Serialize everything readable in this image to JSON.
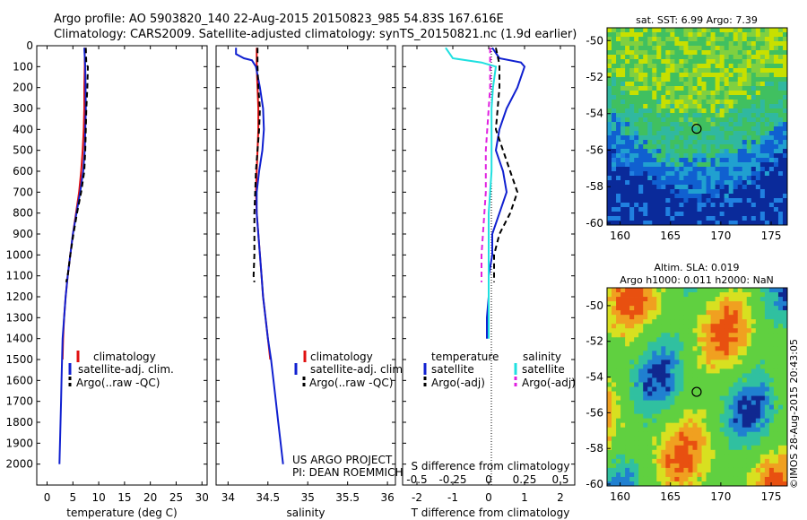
{
  "header": {
    "line1": "Argo profile: AO 5903820_140 22-Aug-2015 20150823_985 54.83S 167.616E",
    "line2": "Climatology: CARS2009. Satellite-adjusted climatology: synTS_20150821.nc (1.9d earlier)"
  },
  "colors": {
    "climatology": "#e01010",
    "satellite": "#1020d0",
    "argo": "#000000",
    "salinity_sat": "#20e0e0",
    "salinity_argo": "#e020e0"
  },
  "panels": {
    "temperature": {
      "xlabel": "temperature (deg C)",
      "legend": [
        "climatology",
        "satellite-adj. clim.",
        "Argo(..raw -QC)"
      ]
    },
    "salinity": {
      "xlabel": "salinity",
      "legend": [
        "climatology",
        "satellite-adj. clim.",
        "Argo(..raw -QC)"
      ],
      "note1": "US ARGO PROJECT",
      "note2": "PI: DEAN ROEMMICH"
    },
    "difference": {
      "legend_head_left": "temperature",
      "legend_head_right": "salinity",
      "legend_left": [
        "satellite",
        "Argo(-adj)"
      ],
      "legend_right": [
        "satellite",
        "Argo(-adj)"
      ],
      "s_label": "S difference from climatology",
      "t_label": "T difference from climatology"
    },
    "sst_map": {
      "title": "sat. SST: 6.99 Argo: 7.39"
    },
    "sla_map": {
      "title1": "Altim. SLA: 0.019",
      "title2": "Argo h1000: 0.011 h2000: NaN",
      "side_label": "©IMOS 28-Aug-2015 20:43:05"
    }
  },
  "chart_data": [
    {
      "type": "line",
      "name": "temperature profile",
      "xlabel": "temperature (deg C)",
      "ylabel": "",
      "xlim": [
        -2,
        31
      ],
      "ylim": [
        2100,
        0
      ],
      "xticks": [
        0,
        5,
        10,
        15,
        20,
        25,
        30
      ],
      "yticks": [
        0,
        100,
        200,
        300,
        400,
        500,
        600,
        700,
        800,
        900,
        1000,
        1100,
        1200,
        1300,
        1400,
        1500,
        1600,
        1700,
        1800,
        1900,
        2000
      ],
      "series": [
        {
          "name": "climatology",
          "style": "solid",
          "color": "#e01010",
          "points": [
            [
              7.3,
              10
            ],
            [
              7.3,
              100
            ],
            [
              7.2,
              200
            ],
            [
              7.2,
              300
            ],
            [
              7.1,
              400
            ],
            [
              6.9,
              500
            ],
            [
              6.6,
              600
            ],
            [
              6.2,
              700
            ],
            [
              5.6,
              800
            ],
            [
              5.0,
              900
            ],
            [
              4.5,
              1000
            ],
            [
              4.0,
              1100
            ],
            [
              3.6,
              1200
            ],
            [
              3.3,
              1300
            ],
            [
              3.1,
              1400
            ],
            [
              3.0,
              1500
            ]
          ]
        },
        {
          "name": "satellite-adj. clim.",
          "style": "solid",
          "color": "#1020d0",
          "points": [
            [
              7.2,
              10
            ],
            [
              7.4,
              100
            ],
            [
              7.5,
              300
            ],
            [
              7.3,
              500
            ],
            [
              7.0,
              600
            ],
            [
              6.4,
              700
            ],
            [
              5.7,
              800
            ],
            [
              5.0,
              900
            ],
            [
              4.5,
              1000
            ],
            [
              4.0,
              1100
            ],
            [
              3.6,
              1200
            ],
            [
              3.3,
              1300
            ],
            [
              3.0,
              1400
            ],
            [
              2.9,
              1500
            ],
            [
              2.8,
              1600
            ],
            [
              2.7,
              1700
            ],
            [
              2.6,
              1800
            ],
            [
              2.5,
              1900
            ],
            [
              2.4,
              2000
            ]
          ]
        },
        {
          "name": "Argo(..raw -QC)",
          "style": "dashed",
          "color": "#000000",
          "points": [
            [
              7.5,
              10
            ],
            [
              7.6,
              90
            ],
            [
              7.9,
              100
            ],
            [
              7.8,
              200
            ],
            [
              7.6,
              300
            ],
            [
              7.4,
              500
            ],
            [
              7.2,
              600
            ],
            [
              6.6,
              700
            ],
            [
              5.8,
              800
            ],
            [
              5.1,
              900
            ],
            [
              4.5,
              1000
            ],
            [
              4.0,
              1100
            ],
            [
              3.7,
              1130
            ]
          ]
        }
      ]
    },
    {
      "type": "line",
      "name": "salinity profile",
      "xlabel": "salinity",
      "ylabel": "",
      "xlim": [
        33.85,
        36.1
      ],
      "ylim": [
        2100,
        0
      ],
      "xticks": [
        34,
        34.5,
        35,
        35.5,
        36
      ],
      "series": [
        {
          "name": "climatology",
          "style": "solid",
          "color": "#e01010",
          "points": [
            [
              34.36,
              10
            ],
            [
              34.36,
              100
            ],
            [
              34.37,
              200
            ],
            [
              34.38,
              300
            ],
            [
              34.38,
              400
            ],
            [
              34.37,
              500
            ],
            [
              34.36,
              600
            ],
            [
              34.35,
              700
            ],
            [
              34.36,
              800
            ],
            [
              34.38,
              900
            ],
            [
              34.4,
              1000
            ],
            [
              34.42,
              1100
            ],
            [
              34.44,
              1200
            ],
            [
              34.47,
              1300
            ],
            [
              34.5,
              1400
            ],
            [
              34.53,
              1500
            ]
          ]
        },
        {
          "name": "satellite-adj. clim.",
          "style": "solid",
          "color": "#1020d0",
          "points": [
            [
              34.1,
              10
            ],
            [
              34.1,
              40
            ],
            [
              34.2,
              60
            ],
            [
              34.3,
              70
            ],
            [
              34.35,
              100
            ],
            [
              34.4,
              200
            ],
            [
              34.44,
              300
            ],
            [
              34.45,
              400
            ],
            [
              34.43,
              500
            ],
            [
              34.39,
              600
            ],
            [
              34.36,
              700
            ],
            [
              34.36,
              800
            ],
            [
              34.38,
              900
            ],
            [
              34.4,
              1000
            ],
            [
              34.42,
              1100
            ],
            [
              34.44,
              1200
            ],
            [
              34.47,
              1300
            ],
            [
              34.5,
              1400
            ],
            [
              34.54,
              1500
            ],
            [
              34.57,
              1600
            ],
            [
              34.6,
              1700
            ],
            [
              34.63,
              1800
            ],
            [
              34.66,
              1900
            ],
            [
              34.69,
              2000
            ]
          ]
        },
        {
          "name": "Argo(..raw -QC)",
          "style": "dashed",
          "color": "#000000",
          "points": [
            [
              34.37,
              10
            ],
            [
              34.37,
              100
            ],
            [
              34.38,
              200
            ],
            [
              34.4,
              300
            ],
            [
              34.39,
              400
            ],
            [
              34.37,
              500
            ],
            [
              34.35,
              600
            ],
            [
              34.34,
              700
            ],
            [
              34.33,
              800
            ],
            [
              34.33,
              900
            ],
            [
              34.33,
              1000
            ],
            [
              34.32,
              1100
            ],
            [
              34.33,
              1130
            ]
          ]
        }
      ]
    },
    {
      "type": "line",
      "name": "difference from climatology",
      "xlabel": "T difference from climatology",
      "x2label": "S difference from climatology",
      "xlim": [
        -2.4,
        2.4
      ],
      "x2lim": [
        -0.6,
        0.6
      ],
      "ylim": [
        2100,
        0
      ],
      "xticks": [
        -2,
        -1,
        0,
        1,
        2
      ],
      "x2ticks": [
        -0.5,
        -0.25,
        0,
        0.25,
        0.5
      ],
      "series": [
        {
          "name": "satellite",
          "group": "temperature",
          "style": "solid",
          "color": "#1020d0",
          "points": [
            [
              0.1,
              10
            ],
            [
              0.3,
              60
            ],
            [
              0.9,
              80
            ],
            [
              1.0,
              100
            ],
            [
              0.8,
              200
            ],
            [
              0.5,
              300
            ],
            [
              0.3,
              400
            ],
            [
              0.2,
              500
            ],
            [
              0.4,
              600
            ],
            [
              0.5,
              700
            ],
            [
              0.3,
              800
            ],
            [
              0.1,
              900
            ],
            [
              0.1,
              1000
            ],
            [
              0.0,
              1100
            ],
            [
              0.0,
              1200
            ],
            [
              -0.05,
              1300
            ],
            [
              -0.05,
              1400
            ]
          ]
        },
        {
          "name": "Argo(-adj)",
          "group": "temperature",
          "style": "dashed",
          "color": "#000000",
          "points": [
            [
              0.2,
              10
            ],
            [
              0.3,
              90
            ],
            [
              0.3,
              200
            ],
            [
              0.25,
              300
            ],
            [
              0.2,
              400
            ],
            [
              0.4,
              500
            ],
            [
              0.6,
              600
            ],
            [
              0.8,
              700
            ],
            [
              0.6,
              800
            ],
            [
              0.3,
              900
            ],
            [
              0.15,
              1000
            ],
            [
              0.15,
              1130
            ]
          ]
        },
        {
          "name": "satellite",
          "group": "salinity",
          "style": "solid",
          "color": "#20e0e0",
          "points": [
            [
              -0.3,
              10
            ],
            [
              -0.25,
              60
            ],
            [
              -0.05,
              80
            ],
            [
              0.05,
              100
            ],
            [
              0.03,
              200
            ],
            [
              0.02,
              300
            ],
            [
              0.02,
              400
            ],
            [
              0.02,
              600
            ],
            [
              0.0,
              800
            ],
            [
              0.0,
              1000
            ],
            [
              0.0,
              1200
            ],
            [
              0.0,
              1400
            ]
          ]
        },
        {
          "name": "Argo(-adj)",
          "group": "salinity",
          "style": "dashed",
          "color": "#e020e0",
          "points": [
            [
              0.01,
              10
            ],
            [
              0.01,
              100
            ],
            [
              0.01,
              200
            ],
            [
              0.0,
              300
            ],
            [
              -0.01,
              400
            ],
            [
              -0.02,
              500
            ],
            [
              -0.02,
              600
            ],
            [
              -0.02,
              700
            ],
            [
              -0.03,
              800
            ],
            [
              -0.04,
              900
            ],
            [
              -0.05,
              1000
            ],
            [
              -0.05,
              1130
            ]
          ]
        }
      ]
    },
    {
      "type": "heatmap",
      "name": "sat. SST map",
      "title": "sat. SST: 6.99 Argo: 7.39",
      "xlim": [
        158.7,
        176.6
      ],
      "ylim": [
        -60.1,
        -49.3
      ],
      "xticks": [
        160,
        165,
        170,
        175
      ],
      "yticks": [
        -50,
        -52,
        -54,
        -56,
        -58,
        -60
      ],
      "marker": [
        167.6,
        -54.83
      ]
    },
    {
      "type": "heatmap",
      "name": "altimetry SLA map",
      "title": "Altim. SLA: 0.019",
      "xlim": [
        158.7,
        176.6
      ],
      "ylim": [
        -60.1,
        -49.0
      ],
      "xticks": [
        160,
        165,
        170,
        175
      ],
      "yticks": [
        -50,
        -52,
        -54,
        -56,
        -58,
        -60
      ],
      "marker": [
        167.6,
        -54.83
      ]
    }
  ]
}
